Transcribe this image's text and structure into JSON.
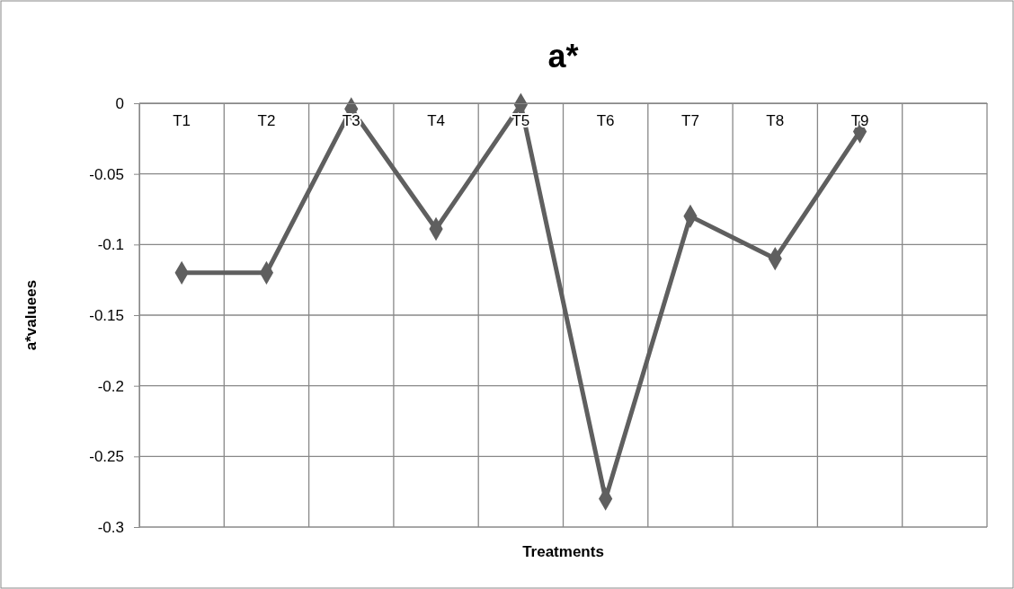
{
  "chart_data": {
    "type": "line",
    "title": "a*",
    "xlabel": "Treatments",
    "ylabel": "a*valuees",
    "categories": [
      "T1",
      "T2",
      "T3",
      "T4",
      "T5",
      "T6",
      "T7",
      "T8",
      "T9",
      null
    ],
    "series": [
      {
        "color": "#5f5f5f",
        "values": [
          -0.12,
          -0.12,
          -0.004,
          -0.089,
          -0.001,
          -0.28,
          -0.08,
          -0.11,
          -0.02,
          null
        ]
      }
    ],
    "ylim": [
      -0.3,
      0
    ],
    "yticks": [
      -0.3,
      -0.25,
      -0.2,
      -0.15,
      -0.1,
      -0.05,
      0
    ],
    "grid": true,
    "marker": "diamond",
    "line_style": "solid"
  }
}
